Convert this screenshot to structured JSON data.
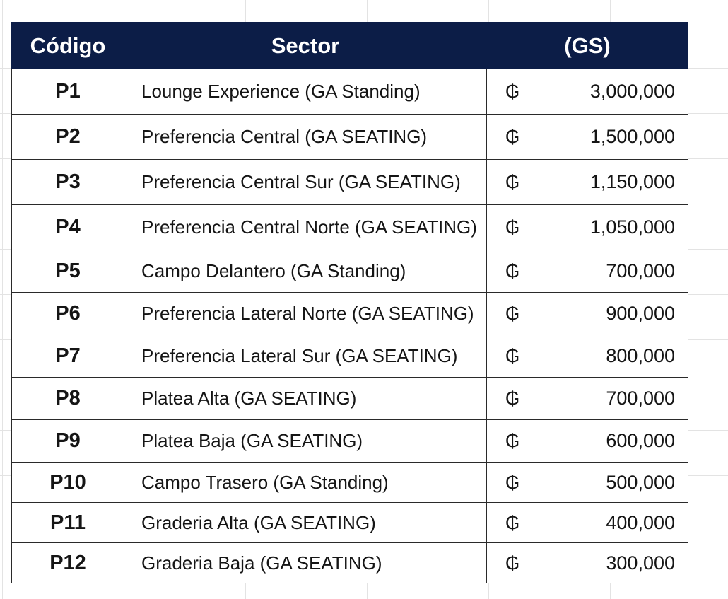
{
  "header": {
    "code": "Código",
    "sector": "Sector",
    "price": "(GS)"
  },
  "currency_symbol": "₲",
  "rows": [
    {
      "code": "P1",
      "sector": "Lounge Experience (GA Standing)",
      "price": "3,000,000"
    },
    {
      "code": "P2",
      "sector": "Preferencia Central (GA SEATING)",
      "price": "1,500,000"
    },
    {
      "code": "P3",
      "sector": "Preferencia Central Sur (GA SEATING)",
      "price": "1,150,000"
    },
    {
      "code": "P4",
      "sector": "Preferencia Central Norte (GA SEATING)",
      "price": "1,050,000"
    },
    {
      "code": "P5",
      "sector": "Campo Delantero (GA Standing)",
      "price": "700,000"
    },
    {
      "code": "P6",
      "sector": "Preferencia Lateral Norte (GA SEATING)",
      "price": "900,000"
    },
    {
      "code": "P7",
      "sector": "Preferencia Lateral Sur (GA SEATING)",
      "price": "800,000"
    },
    {
      "code": "P8",
      "sector": "Platea Alta (GA SEATING)",
      "price": "700,000"
    },
    {
      "code": "P9",
      "sector": "Platea Baja (GA SEATING)",
      "price": "600,000"
    },
    {
      "code": "P10",
      "sector": "Campo Trasero (GA Standing)",
      "price": "500,000"
    },
    {
      "code": "P11",
      "sector": "Graderia Alta (GA SEATING)",
      "price": "400,000"
    },
    {
      "code": "P12",
      "sector": "Graderia Baja (GA SEATING)",
      "price": "300,000"
    }
  ],
  "colors": {
    "header_bg": "#0c1d47",
    "header_text": "#ffffff",
    "grid_line": "#e3e3e3"
  }
}
